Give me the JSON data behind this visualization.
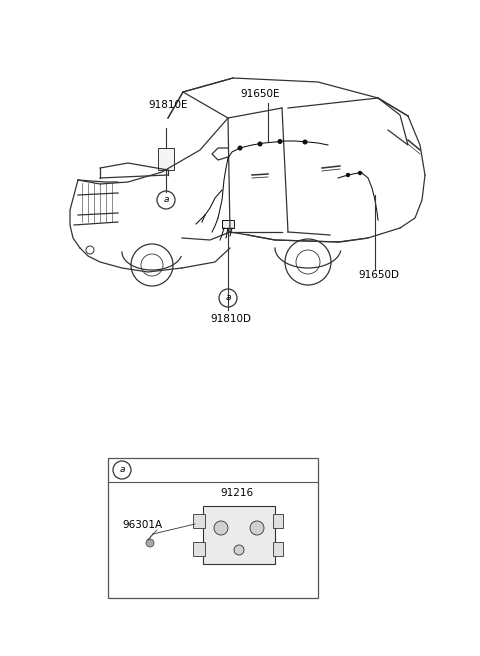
{
  "background_color": "#ffffff",
  "line_color": "#333333",
  "text_color": "#000000",
  "label_91650E": "91650E",
  "label_91810E": "91810E",
  "label_91650D": "91650D",
  "label_91810D": "91810D",
  "label_96301A": "96301A",
  "label_91216": "91216",
  "circle_label": "a",
  "fig_width": 4.8,
  "fig_height": 6.56,
  "dpi": 100
}
